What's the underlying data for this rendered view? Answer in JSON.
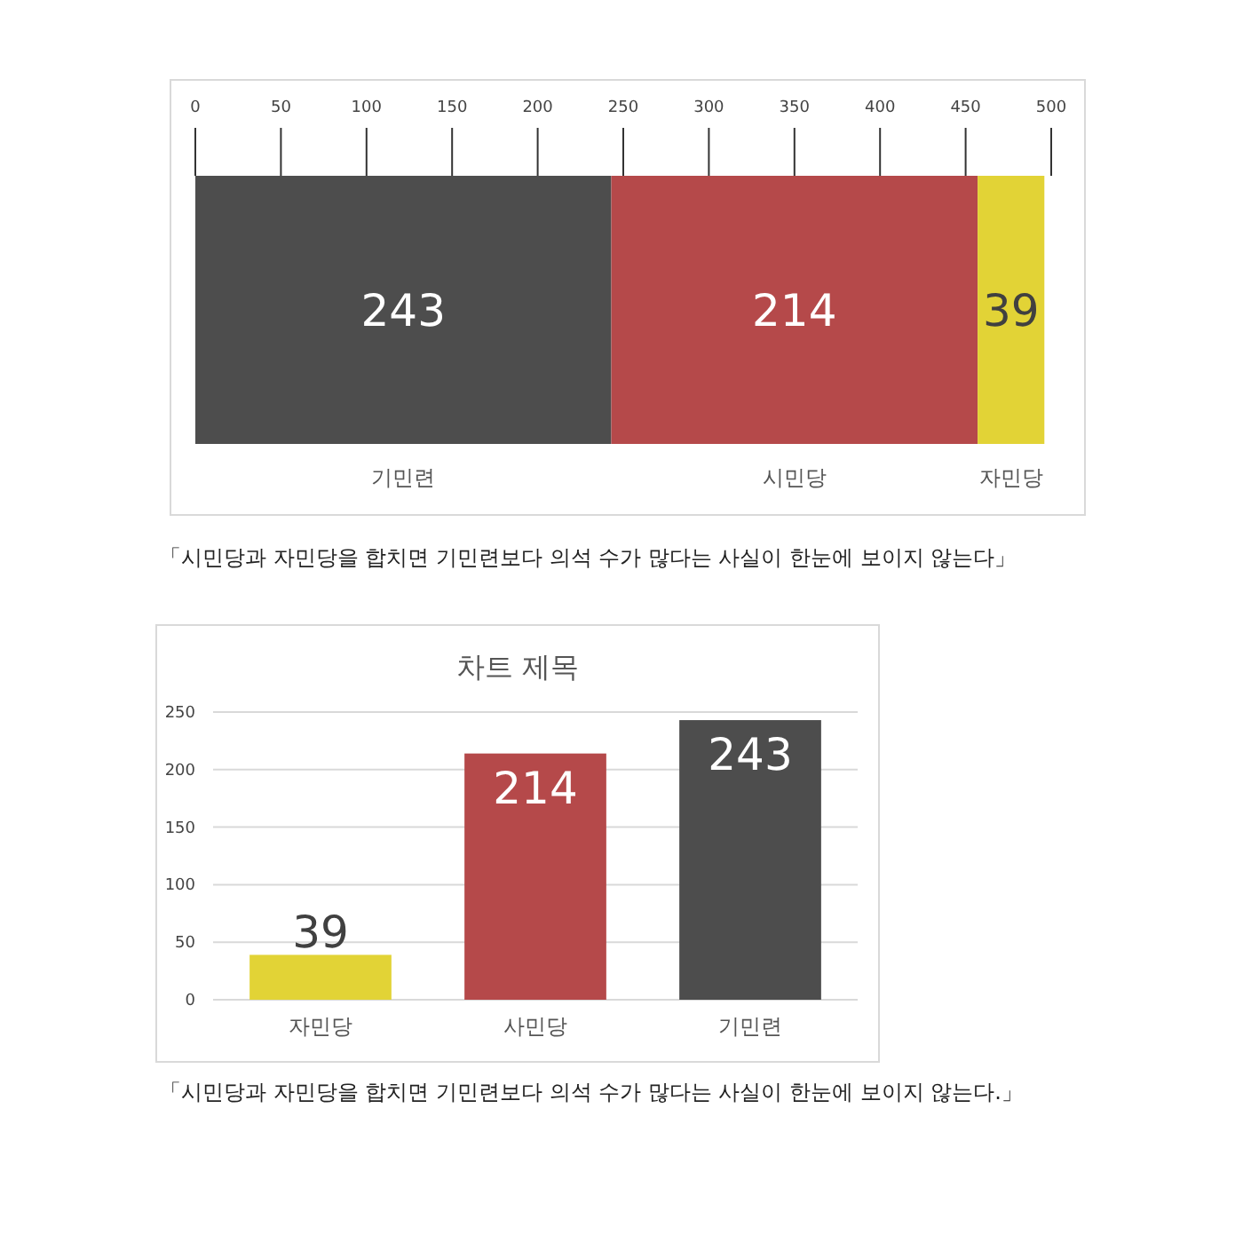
{
  "chart_data": [
    {
      "type": "bar",
      "orientation": "horizontal",
      "stacked": true,
      "categories": [
        null
      ],
      "series": [
        {
          "name": "기민련",
          "color": "#4d4d4d",
          "values": [
            243
          ]
        },
        {
          "name": "시민당",
          "color": "#b5494a",
          "values": [
            214
          ]
        },
        {
          "name": "자민당",
          "color": "#e2d336",
          "values": [
            39
          ]
        }
      ],
      "xlim": [
        0,
        500
      ],
      "xticks": [
        0,
        50,
        100,
        150,
        200,
        250,
        300,
        350,
        400,
        450,
        500
      ],
      "tick_labels": "x",
      "data_labels": true,
      "annotations": [
        "「시민당과 자민당을 합치면 기민련보다 의석 수가 많다는 사실이 한눈에 보이지 않는다」"
      ]
    },
    {
      "type": "bar",
      "title": "차트 제목",
      "categories": [
        "자민당",
        "사민당",
        "기민련"
      ],
      "values": [
        39,
        214,
        243
      ],
      "colors": [
        "#e2d336",
        "#b5494a",
        "#4d4d4d"
      ],
      "ylim": [
        0,
        250
      ],
      "yticks": [
        0,
        50,
        100,
        150,
        200,
        250
      ],
      "grid": "y",
      "data_labels": true,
      "annotations": [
        "「시민당과 자민당을 합치면 기민련보다 의석 수가 많다는 사실이 한눈에 보이지 않는다.」"
      ]
    }
  ]
}
